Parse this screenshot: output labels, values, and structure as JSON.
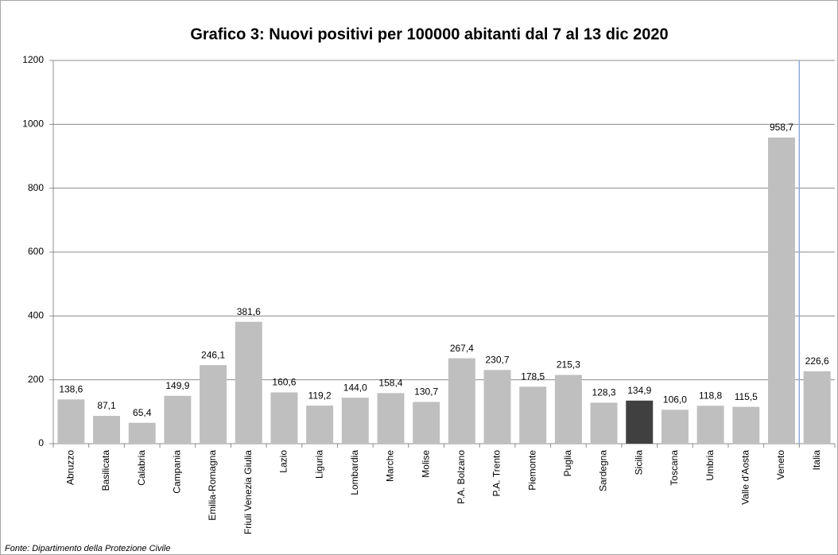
{
  "chart_data": {
    "type": "bar",
    "title": "Grafico 3: Nuovi positivi per 100000 abitanti dal 7 al 13 dic 2020",
    "categories": [
      "Abruzzo",
      "Basilicata",
      "Calabria",
      "Campania",
      "Emilia-Romagna",
      "Friuli Venezia Giulia",
      "Lazio",
      "Liguria",
      "Lombardia",
      "Marche",
      "Molise",
      "P.A. Bolzano",
      "P.A. Trento",
      "Piemonte",
      "Puglia",
      "Sardegna",
      "Sicilia",
      "Toscana",
      "Umbria",
      "Valle d'Aosta",
      "Veneto",
      "Italia"
    ],
    "values": [
      138.6,
      87.1,
      65.4,
      149.9,
      246.1,
      381.6,
      160.6,
      119.2,
      144.0,
      158.4,
      130.7,
      267.4,
      230.7,
      178.5,
      215.3,
      128.3,
      134.9,
      106.0,
      118.8,
      115.5,
      958.7,
      226.6
    ],
    "value_labels": [
      "138,6",
      "87,1",
      "65,4",
      "149,9",
      "246,1",
      "381,6",
      "160,6",
      "119,2",
      "144,0",
      "158,4",
      "130,7",
      "267,4",
      "230,7",
      "178,5",
      "215,3",
      "128,3",
      "134,9",
      "106,0",
      "118,8",
      "115,5",
      "958,7",
      "226,6"
    ],
    "colors": [
      "#bfbfbf",
      "#bfbfbf",
      "#bfbfbf",
      "#bfbfbf",
      "#bfbfbf",
      "#bfbfbf",
      "#bfbfbf",
      "#bfbfbf",
      "#bfbfbf",
      "#bfbfbf",
      "#bfbfbf",
      "#bfbfbf",
      "#bfbfbf",
      "#bfbfbf",
      "#bfbfbf",
      "#bfbfbf",
      "#404040",
      "#bfbfbf",
      "#bfbfbf",
      "#bfbfbf",
      "#bfbfbf",
      "#bfbfbf"
    ],
    "ylim": [
      0,
      1200
    ],
    "yticks": [
      0,
      200,
      400,
      600,
      800,
      1000,
      1200
    ],
    "grid": true,
    "source": "Fonte: Dipartimento della Protezione Civile"
  }
}
